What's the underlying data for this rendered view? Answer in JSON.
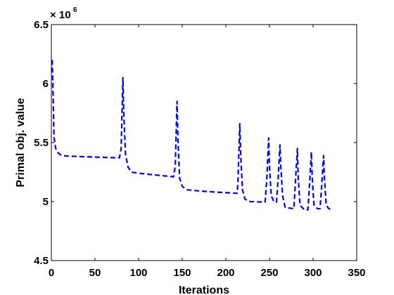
{
  "chart_data": {
    "type": "line",
    "xlabel": "Iterations",
    "ylabel": "Primal obj. value",
    "y_multiplier": {
      "base": "× 10",
      "exponent": "6"
    },
    "xlim": [
      0,
      350
    ],
    "ylim": [
      4.5,
      6.5
    ],
    "xticks": [
      0,
      50,
      100,
      150,
      200,
      250,
      300,
      350
    ],
    "yticks": [
      4.5,
      5,
      5.5,
      6,
      6.5
    ],
    "grid": false,
    "series": [
      {
        "color": "#0000ff",
        "style": "dashed",
        "points": [
          [
            1,
            6.2
          ],
          [
            2,
            5.9
          ],
          [
            3,
            5.55
          ],
          [
            5,
            5.45
          ],
          [
            8,
            5.41
          ],
          [
            12,
            5.39
          ],
          [
            20,
            5.385
          ],
          [
            40,
            5.38
          ],
          [
            60,
            5.375
          ],
          [
            78,
            5.37
          ],
          [
            80,
            5.45
          ],
          [
            82,
            6.05
          ],
          [
            83,
            5.75
          ],
          [
            85,
            5.4
          ],
          [
            88,
            5.29
          ],
          [
            92,
            5.25
          ],
          [
            100,
            5.24
          ],
          [
            120,
            5.225
          ],
          [
            140,
            5.21
          ],
          [
            142,
            5.3
          ],
          [
            144,
            5.85
          ],
          [
            145,
            5.55
          ],
          [
            147,
            5.2
          ],
          [
            150,
            5.13
          ],
          [
            155,
            5.1
          ],
          [
            170,
            5.09
          ],
          [
            190,
            5.08
          ],
          [
            213,
            5.07
          ],
          [
            214,
            5.2
          ],
          [
            216,
            5.66
          ],
          [
            217,
            5.4
          ],
          [
            219,
            5.1
          ],
          [
            222,
            5.02
          ],
          [
            228,
            5.0
          ],
          [
            245,
            4.995
          ],
          [
            247,
            5.2
          ],
          [
            249,
            5.54
          ],
          [
            250,
            5.3
          ],
          [
            252,
            5.05
          ],
          [
            255,
            5.0
          ],
          [
            258,
            4.995
          ],
          [
            260,
            5.2
          ],
          [
            262,
            5.48
          ],
          [
            263,
            5.3
          ],
          [
            265,
            5.05
          ],
          [
            268,
            4.95
          ],
          [
            278,
            4.94
          ],
          [
            280,
            5.2
          ],
          [
            282,
            5.45
          ],
          [
            283,
            5.2
          ],
          [
            285,
            4.97
          ],
          [
            290,
            4.93
          ],
          [
            294,
            4.93
          ],
          [
            296,
            5.15
          ],
          [
            298,
            5.42
          ],
          [
            299,
            5.2
          ],
          [
            301,
            4.97
          ],
          [
            305,
            4.94
          ],
          [
            308,
            4.94
          ],
          [
            310,
            5.15
          ],
          [
            312,
            5.39
          ],
          [
            313,
            5.2
          ],
          [
            315,
            4.97
          ],
          [
            318,
            4.94
          ],
          [
            322,
            4.93
          ]
        ]
      }
    ]
  }
}
